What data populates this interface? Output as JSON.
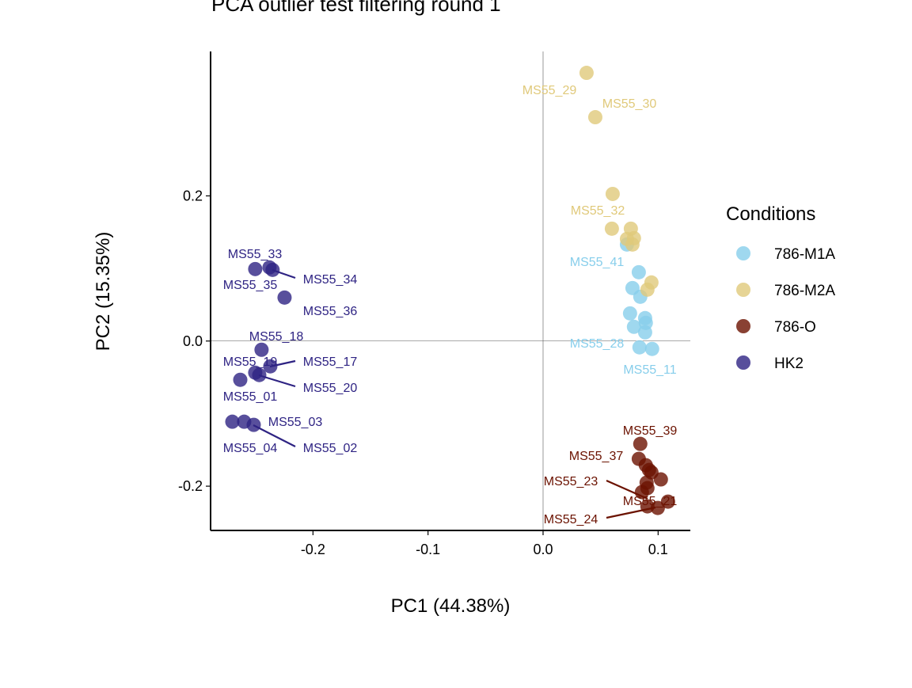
{
  "chart_data": {
    "type": "scatter",
    "title": "PCA outlier test filtering round  1",
    "xlabel": "PC1 (44.38%)",
    "ylabel": "PC2 (15.35%)",
    "xlim": [
      -0.289,
      0.128
    ],
    "ylim": [
      -0.261,
      0.399
    ],
    "xticks": [
      -0.2,
      -0.1,
      0.0,
      0.1
    ],
    "xtick_labels": [
      "-0.2",
      "-0.1",
      "0.0",
      "0.1"
    ],
    "yticks": [
      -0.2,
      0.0,
      0.2
    ],
    "ytick_labels": [
      "-0.2",
      "0.0",
      "0.2"
    ],
    "grid": false,
    "reference_lines": {
      "x": 0,
      "y": 0
    },
    "legend": {
      "title": "Conditions",
      "placement": "right"
    },
    "series": [
      {
        "name": "786-M1A",
        "color": "#87CEEB",
        "x": [
          0.0729,
          0.0832,
          0.0777,
          0.0845,
          0.0756,
          0.079,
          0.0887,
          0.0893,
          0.0887,
          0.0838,
          0.0948
        ],
        "y": [
          0.133,
          0.0948,
          0.073,
          0.061,
          0.0381,
          0.0196,
          0.0316,
          0.025,
          0.012,
          -0.0087,
          -0.0109
        ]
      },
      {
        "name": "786-M2A",
        "color": "#E0C97A",
        "x": [
          0.0378,
          0.0454,
          0.0605,
          0.0598,
          0.0763,
          0.0729,
          0.079,
          0.0777,
          0.0942,
          0.0907
        ],
        "y": [
          0.3695,
          0.3084,
          0.2027,
          0.1548,
          0.1548,
          0.1406,
          0.1417,
          0.133,
          0.0807,
          0.0708
        ]
      },
      {
        "name": "786-O",
        "color": "#6B1200",
        "x": [
          0.0845,
          0.0832,
          0.0893,
          0.0921,
          0.0942,
          0.1024,
          0.09,
          0.0907,
          0.0859,
          0.0907,
          0.0997,
          0.1086
        ],
        "y": [
          -0.1417,
          -0.1624,
          -0.1711,
          -0.1777,
          -0.181,
          -0.1907,
          -0.1951,
          -0.2027,
          -0.2082,
          -0.2278,
          -0.23,
          -0.2213
        ]
      },
      {
        "name": "HK2",
        "color": "#2E2383",
        "x": [
          -0.2502,
          -0.2378,
          -0.2351,
          -0.2247,
          -0.2447,
          -0.2371,
          -0.2502,
          -0.2467,
          -0.2632,
          -0.2701,
          -0.2598,
          -0.2515
        ],
        "y": [
          0.0992,
          0.1014,
          0.0981,
          0.0599,
          -0.012,
          -0.0349,
          -0.0436,
          -0.0469,
          -0.0534,
          -0.1112,
          -0.1112,
          -0.1155
        ]
      }
    ],
    "annotations": [
      {
        "text": "MS55_29",
        "series": "786-M2A"
      },
      {
        "text": "MS55_30",
        "series": "786-M2A"
      },
      {
        "text": "MS55_32",
        "series": "786-M2A"
      },
      {
        "text": "MS55_41",
        "series": "786-M1A"
      },
      {
        "text": "MS55_28",
        "series": "786-M1A"
      },
      {
        "text": "MS55_11",
        "series": "786-M1A"
      },
      {
        "text": "MS55_39",
        "series": "786-O"
      },
      {
        "text": "MS55_37",
        "series": "786-O"
      },
      {
        "text": "MS55_23",
        "series": "786-O"
      },
      {
        "text": "MS55_21",
        "series": "786-O"
      },
      {
        "text": "MS55_24",
        "series": "786-O"
      },
      {
        "text": "MS55_33",
        "series": "HK2"
      },
      {
        "text": "MS55_34",
        "series": "HK2"
      },
      {
        "text": "MS55_35",
        "series": "HK2"
      },
      {
        "text": "MS55_36",
        "series": "HK2"
      },
      {
        "text": "MS55_18",
        "series": "HK2"
      },
      {
        "text": "MS55_19",
        "series": "HK2"
      },
      {
        "text": "MS55_17",
        "series": "HK2"
      },
      {
        "text": "MS55_20",
        "series": "HK2"
      },
      {
        "text": "MS55_01",
        "series": "HK2"
      },
      {
        "text": "MS55_03",
        "series": "HK2"
      },
      {
        "text": "MS55_04",
        "series": "HK2"
      },
      {
        "text": "MS55_02",
        "series": "HK2"
      }
    ]
  }
}
